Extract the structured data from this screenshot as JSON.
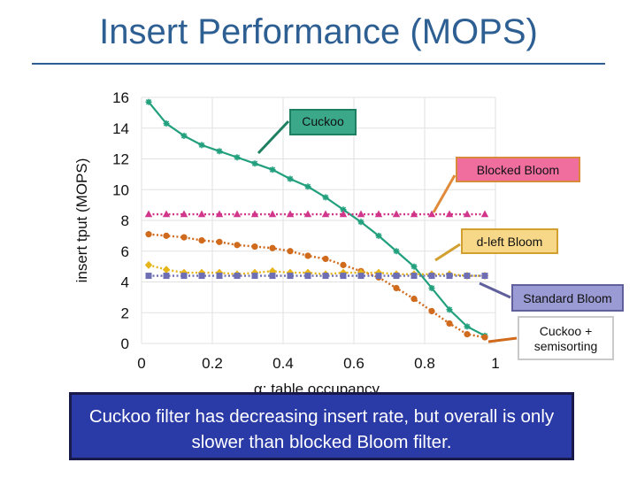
{
  "slide": {
    "title": "Insert Performance (MOPS)",
    "summary": "Cuckoo filter has decreasing insert rate, but overall is only slower than blocked Bloom filter."
  },
  "callouts": {
    "cuckoo": "Cuckoo",
    "blocked_bloom": "Blocked Bloom",
    "dleft_bloom": "d-left Bloom",
    "standard_bloom": "Standard Bloom",
    "cuckoo_semisorting": "Cuckoo + semisorting"
  },
  "chart_data": {
    "type": "line",
    "xlabel": "α: table occupancy",
    "ylabel": "insert tput (MOPS)",
    "xlim": [
      0,
      1
    ],
    "ylim": [
      0,
      16
    ],
    "xticks": [
      "0",
      "0.2",
      "0.4",
      "0.6",
      "0.8",
      "1"
    ],
    "yticks": [
      "0",
      "2",
      "4",
      "6",
      "8",
      "10",
      "12",
      "14",
      "16"
    ],
    "grid": true,
    "series": [
      {
        "color": "#22a07d",
        "marker": "star",
        "x": [
          0.02,
          0.07,
          0.12,
          0.17,
          0.22,
          0.27,
          0.32,
          0.37,
          0.42,
          0.47,
          0.52,
          0.57,
          0.62,
          0.67,
          0.72,
          0.77,
          0.82,
          0.87,
          0.92,
          0.97
        ],
        "y": [
          15.7,
          14.3,
          13.5,
          12.9,
          12.5,
          12.1,
          11.7,
          11.3,
          10.7,
          10.2,
          9.5,
          8.7,
          7.9,
          7.0,
          6.0,
          5.0,
          3.6,
          2.2,
          1.1,
          0.5
        ]
      },
      {
        "color": "#d2368a",
        "marker": "triangle",
        "x": [
          0.02,
          0.07,
          0.12,
          0.17,
          0.22,
          0.27,
          0.32,
          0.37,
          0.42,
          0.47,
          0.52,
          0.57,
          0.62,
          0.67,
          0.72,
          0.77,
          0.82,
          0.87,
          0.92,
          0.97
        ],
        "y": [
          8.4,
          8.4,
          8.4,
          8.4,
          8.4,
          8.4,
          8.4,
          8.4,
          8.4,
          8.4,
          8.4,
          8.4,
          8.4,
          8.4,
          8.4,
          8.4,
          8.4,
          8.4,
          8.4,
          8.4
        ]
      },
      {
        "color": "#d06a1c",
        "marker": "circle",
        "x": [
          0.02,
          0.07,
          0.12,
          0.17,
          0.22,
          0.27,
          0.32,
          0.37,
          0.42,
          0.47,
          0.52,
          0.57,
          0.62,
          0.67,
          0.72,
          0.77,
          0.82,
          0.87,
          0.92,
          0.97
        ],
        "y": [
          7.1,
          7.0,
          6.9,
          6.7,
          6.6,
          6.4,
          6.3,
          6.2,
          6.0,
          5.7,
          5.5,
          5.1,
          4.7,
          4.3,
          3.6,
          2.9,
          2.1,
          1.3,
          0.6,
          0.4
        ]
      },
      {
        "color": "#e5b51a",
        "marker": "diamond",
        "x": [
          0.02,
          0.07,
          0.12,
          0.17,
          0.22,
          0.27,
          0.32,
          0.37,
          0.42,
          0.47,
          0.52,
          0.57,
          0.62,
          0.67,
          0.72,
          0.77,
          0.82,
          0.87,
          0.92,
          0.97
        ],
        "y": [
          5.1,
          4.8,
          4.6,
          4.6,
          4.6,
          4.5,
          4.6,
          4.7,
          4.6,
          4.6,
          4.5,
          4.6,
          4.6,
          4.6,
          4.5,
          4.5,
          4.5,
          4.5,
          4.4,
          4.4
        ]
      },
      {
        "color": "#6e6eb4",
        "marker": "square",
        "x": [
          0.02,
          0.07,
          0.12,
          0.17,
          0.22,
          0.27,
          0.32,
          0.37,
          0.42,
          0.47,
          0.52,
          0.57,
          0.62,
          0.67,
          0.72,
          0.77,
          0.82,
          0.87,
          0.92,
          0.97
        ],
        "y": [
          4.4,
          4.4,
          4.4,
          4.4,
          4.4,
          4.4,
          4.4,
          4.4,
          4.4,
          4.4,
          4.4,
          4.4,
          4.4,
          4.4,
          4.4,
          4.4,
          4.4,
          4.4,
          4.4,
          4.4
        ]
      }
    ]
  }
}
